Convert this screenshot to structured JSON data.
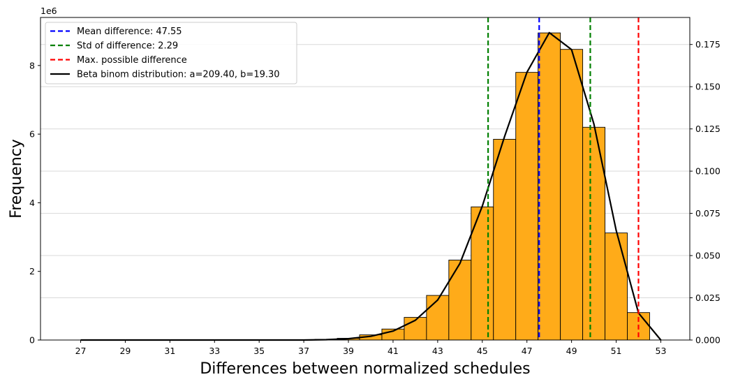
{
  "chart_data": {
    "type": "bar",
    "xlabel": "Differences between normalized schedules",
    "ylabel": "Frequency",
    "y_offset_text": "1e6",
    "x_ticks": [
      27,
      29,
      31,
      33,
      35,
      37,
      39,
      41,
      43,
      45,
      47,
      49,
      51,
      53
    ],
    "xlim": [
      25.2,
      54.3
    ],
    "ylim": [
      0,
      9.4
    ],
    "y_ticks": [
      0,
      2,
      4,
      6,
      8
    ],
    "y2lim": [
      0,
      0.191
    ],
    "y2_ticks": [
      0,
      0.025,
      0.05,
      0.075,
      0.1,
      0.125,
      0.15,
      0.175
    ],
    "y2_tick_labels": [
      "0.000",
      "0.025",
      "0.050",
      "0.075",
      "0.100",
      "0.125",
      "0.150",
      "0.175"
    ],
    "grid": "horizontal",
    "legend_position": "top-left",
    "bar_color": "#ffab19",
    "bar_edge_color": "#000000",
    "bars": {
      "x": [
        27,
        28,
        29,
        30,
        31,
        32,
        33,
        34,
        35,
        36,
        37,
        38,
        39,
        40,
        41,
        42,
        43,
        44,
        45,
        46,
        47,
        48,
        49,
        50,
        51,
        52
      ],
      "values": [
        0,
        0,
        0,
        0,
        0,
        0,
        0,
        0,
        0,
        0,
        0.01,
        0.02,
        0.05,
        0.15,
        0.32,
        0.66,
        1.3,
        2.33,
        3.88,
        5.85,
        7.8,
        8.95,
        8.47,
        6.2,
        3.12,
        0.8
      ],
      "width": 1
    },
    "vlines": [
      {
        "name": "Mean difference: 47.55",
        "x": 47.55,
        "color": "#0000ff"
      },
      {
        "name": "Std of difference: 2.29",
        "x": 45.26,
        "color": "#008000"
      },
      {
        "name": "Std of difference: 2.29",
        "x": 49.84,
        "color": "#008000",
        "legend": false
      },
      {
        "name": "Max. possible difference",
        "x": 52.0,
        "color": "#ff0000"
      }
    ],
    "line": {
      "name": "Beta binom distribution: a=209.40, b=19.30",
      "color": "#000000",
      "x": [
        27,
        28,
        29,
        30,
        31,
        32,
        33,
        34,
        35,
        36,
        37,
        38,
        39,
        40,
        41,
        42,
        43,
        44,
        45,
        46,
        47,
        48,
        49,
        50,
        51,
        52,
        53
      ],
      "values": [
        0,
        0,
        0,
        0,
        0,
        0,
        0,
        0,
        0,
        0,
        0,
        0.0002,
        0.0008,
        0.0022,
        0.0053,
        0.0117,
        0.0237,
        0.0454,
        0.0793,
        0.1205,
        0.1585,
        0.182,
        0.172,
        0.128,
        0.065,
        0.016,
        0.0
      ]
    }
  }
}
